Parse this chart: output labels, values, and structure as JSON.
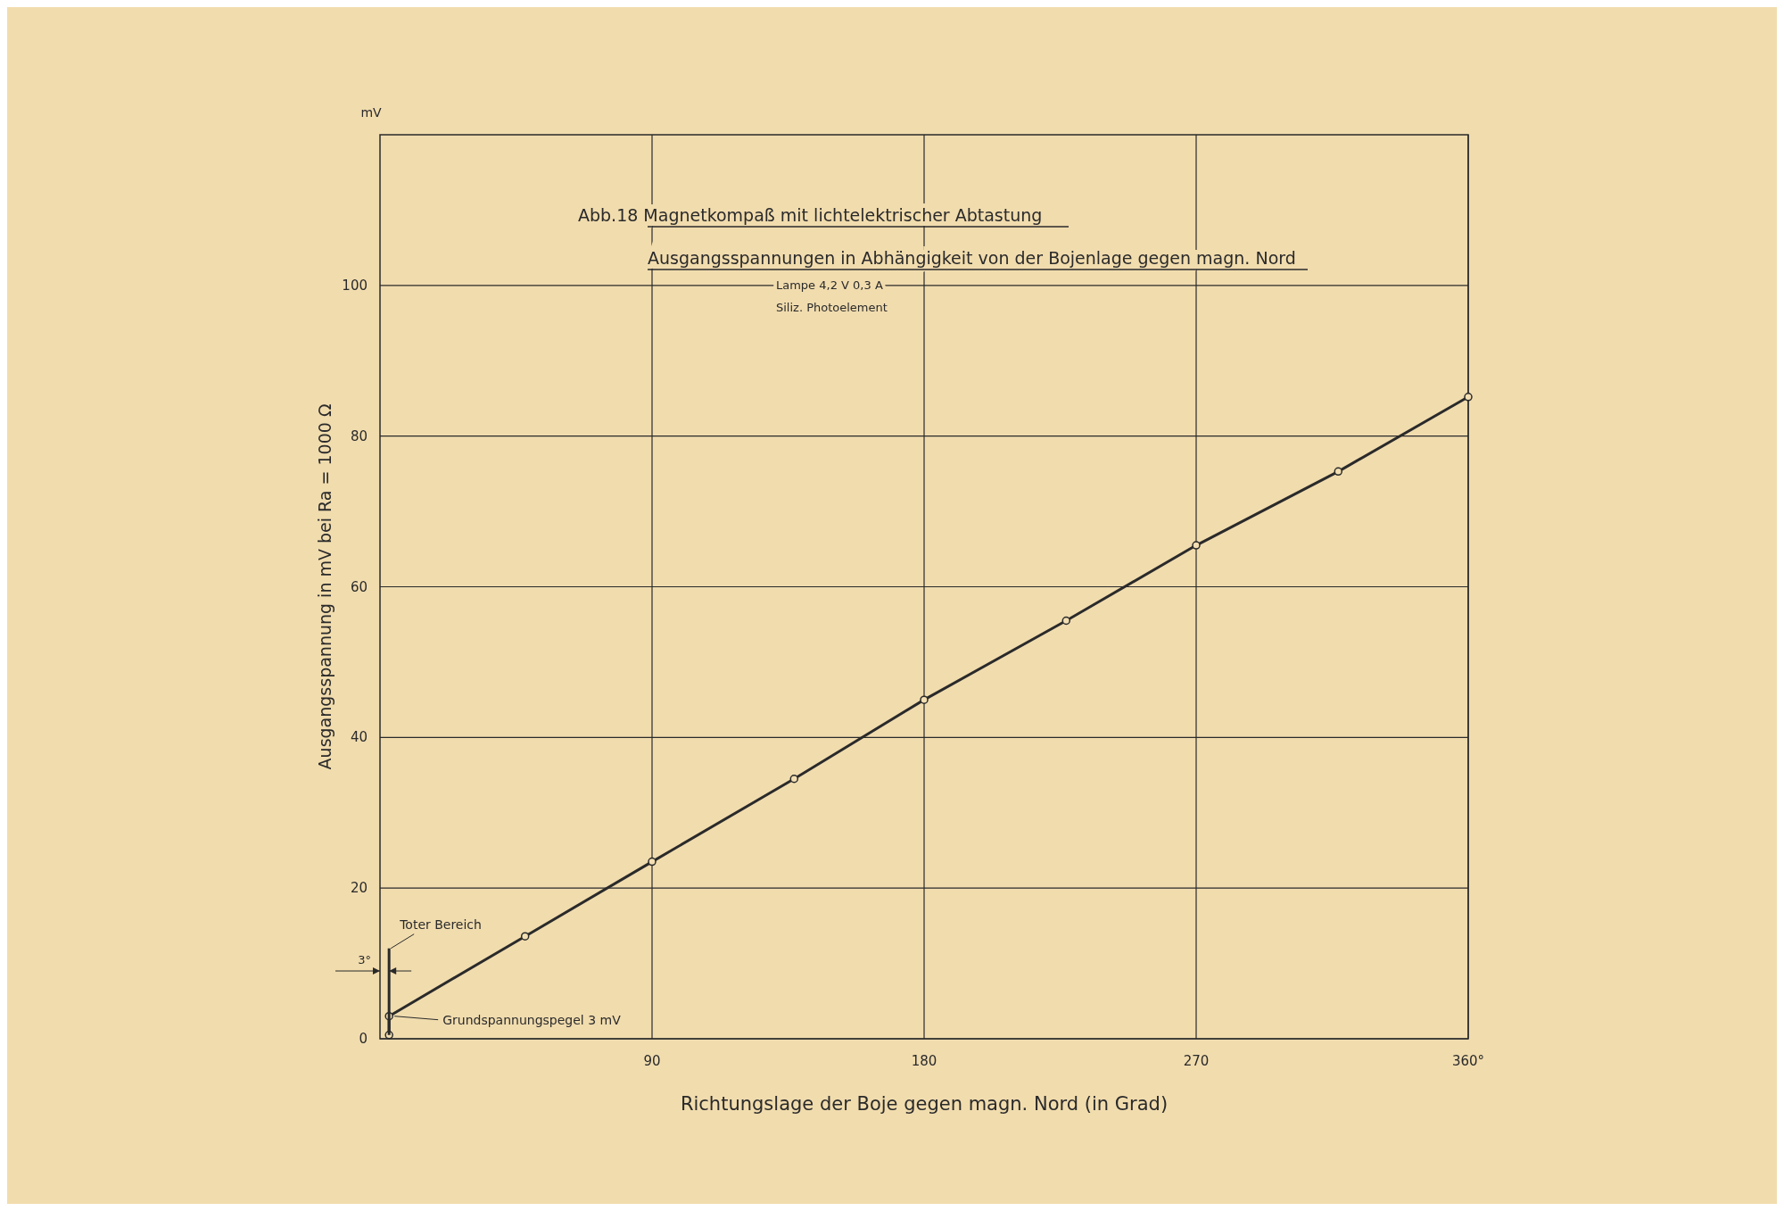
{
  "chart_data": {
    "type": "line",
    "title": "Abb.18 Magnetkompaß mit lichtelektrischer Abtastung",
    "subtitle": "Ausgangsspannungen in Abhängigkeit von der Bojenlage gegen magn. Nord",
    "xlabel": "Richtungslage der Boje gegen magn. Nord   (in Grad)",
    "ylabel": "Ausgangsspannung in  mV  bei  Ra = 1000 Ω",
    "annotations": [
      "mV",
      "Lampe  4,2 V  0,3 A",
      "Siliz. Photoelement",
      {
        "text": "Toter Bereich",
        "x": 3,
        "y": 12
      },
      "3°",
      "Grundspannungspegel  3 mV"
    ],
    "series": [
      {
        "color": "#2a2a2a",
        "x": [
          3,
          3,
          48,
          90,
          137,
          180,
          227,
          270,
          317,
          360
        ],
        "values": [
          0.5,
          3,
          13.6,
          23.5,
          34.5,
          45,
          55.5,
          65.5,
          75.3,
          85.2
        ]
      },
      {
        "color": "#2a2a2a",
        "x": [
          3,
          3
        ],
        "values": [
          0.5,
          12
        ],
        "marker": "none"
      }
    ],
    "xlim": [
      0,
      360
    ],
    "xticks": [
      90,
      180,
      270,
      {
        "value": 360,
        "label": "360°"
      }
    ],
    "ylim": [
      0,
      120
    ],
    "yticks": [
      0,
      20,
      40,
      60,
      80,
      100
    ],
    "grid": true,
    "marker": "circle",
    "line_style": "solid"
  }
}
